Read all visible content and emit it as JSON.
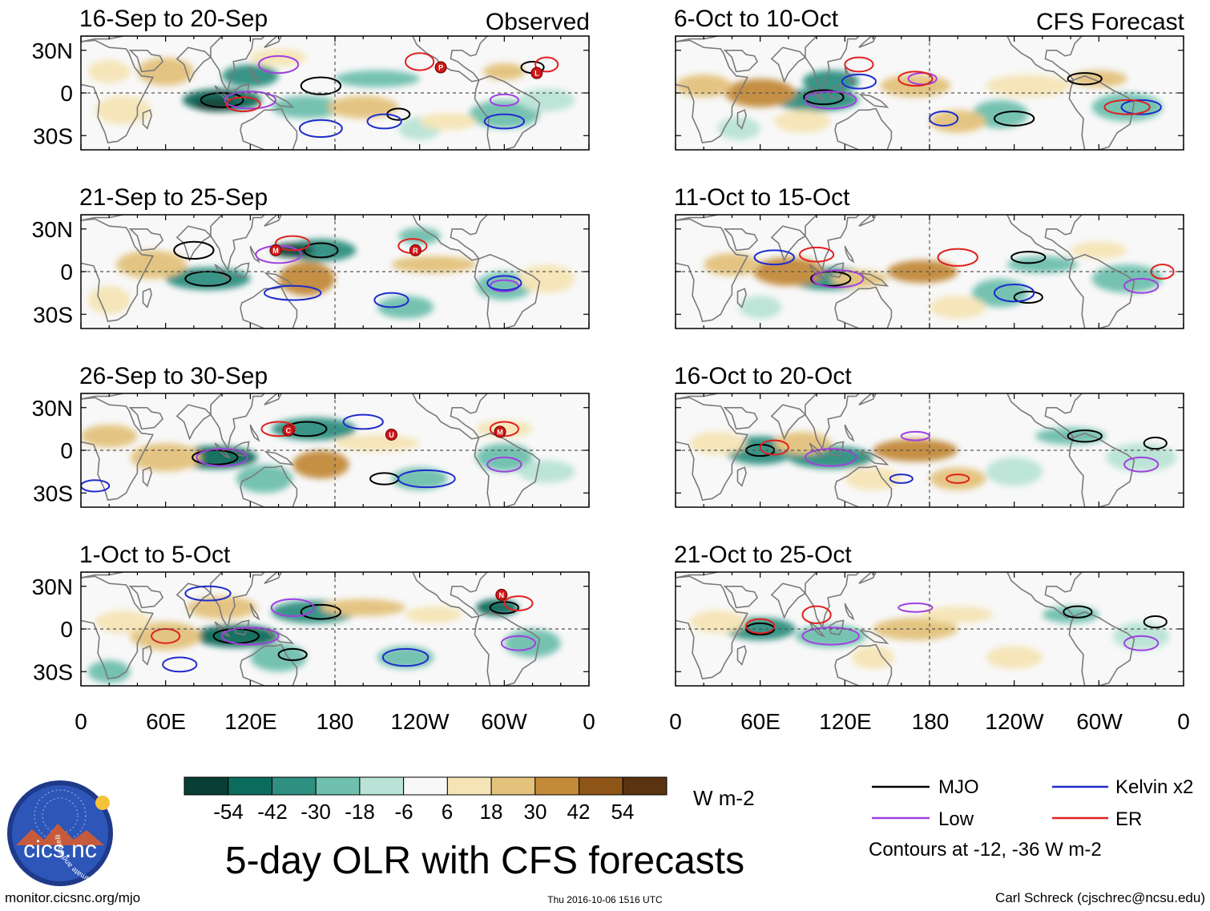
{
  "observed_label": "Observed",
  "forecast_label": "CFS Forecast",
  "lat_labels": [
    "30N",
    "0",
    "30S"
  ],
  "lon_labels": [
    "0",
    "60E",
    "120E",
    "180",
    "120W",
    "60W",
    "0"
  ],
  "panels": [
    {
      "title": "16-Sep to 20-Sep",
      "column": "observed",
      "row": 0
    },
    {
      "title": "21-Sep to 25-Sep",
      "column": "observed",
      "row": 1
    },
    {
      "title": "26-Sep to 30-Sep",
      "column": "observed",
      "row": 2
    },
    {
      "title": "1-Oct to 5-Oct",
      "column": "observed",
      "row": 3
    },
    {
      "title": "6-Oct to 10-Oct",
      "column": "forecast",
      "row": 0
    },
    {
      "title": "11-Oct to 15-Oct",
      "column": "forecast",
      "row": 1
    },
    {
      "title": "16-Oct to 20-Oct",
      "column": "forecast",
      "row": 2
    },
    {
      "title": "21-Oct to 25-Oct",
      "column": "forecast",
      "row": 3
    }
  ],
  "storm_markers": [
    {
      "panel": 0,
      "letter": "P",
      "lon": 255,
      "lat": 18
    },
    {
      "panel": 0,
      "letter": "L",
      "lon": 323,
      "lat": 14
    },
    {
      "panel": 1,
      "letter": "M",
      "lon": 138,
      "lat": 15
    },
    {
      "panel": 1,
      "letter": "R",
      "lon": 237,
      "lat": 15
    },
    {
      "panel": 2,
      "letter": "C",
      "lon": 147,
      "lat": 14
    },
    {
      "panel": 2,
      "letter": "U",
      "lon": 220,
      "lat": 11
    },
    {
      "panel": 2,
      "letter": "M",
      "lon": 297,
      "lat": 13
    },
    {
      "panel": 3,
      "letter": "N",
      "lon": 298,
      "lat": 24
    }
  ],
  "colorbar": {
    "colors": [
      "#073f36",
      "#0b6b5c",
      "#2f8f81",
      "#6fc0ae",
      "#b9e3d6",
      "#f8f8f8",
      "#f5e4b5",
      "#e3c27c",
      "#c38a3a",
      "#8e5517",
      "#5a3411"
    ],
    "tick_labels": [
      "-54",
      "-42",
      "-30",
      "-18",
      "-6",
      "6",
      "18",
      "30",
      "42",
      "54"
    ],
    "units": "W m-2"
  },
  "legend": {
    "items": [
      {
        "label": "MJO",
        "color": "#000000"
      },
      {
        "label": "Kelvin x2",
        "color": "#1f2ccc"
      },
      {
        "label": "Low",
        "color": "#a040e0"
      },
      {
        "label": "ER",
        "color": "#e02020"
      }
    ],
    "contour_note": "Contours at -12, -36 W m-2"
  },
  "logo_text": "cics.nc",
  "logo_ring_text": "Cooperative Institute for Climate and Satellites",
  "main_title": "5-day OLR with CFS forecasts",
  "footer": {
    "website": "monitor.cicsnc.org/mjo",
    "timestamp": "Thu 2016-10-06 1516 UTC",
    "author": "Carl Schreck (cjschrec@ncsu.edu)"
  }
}
